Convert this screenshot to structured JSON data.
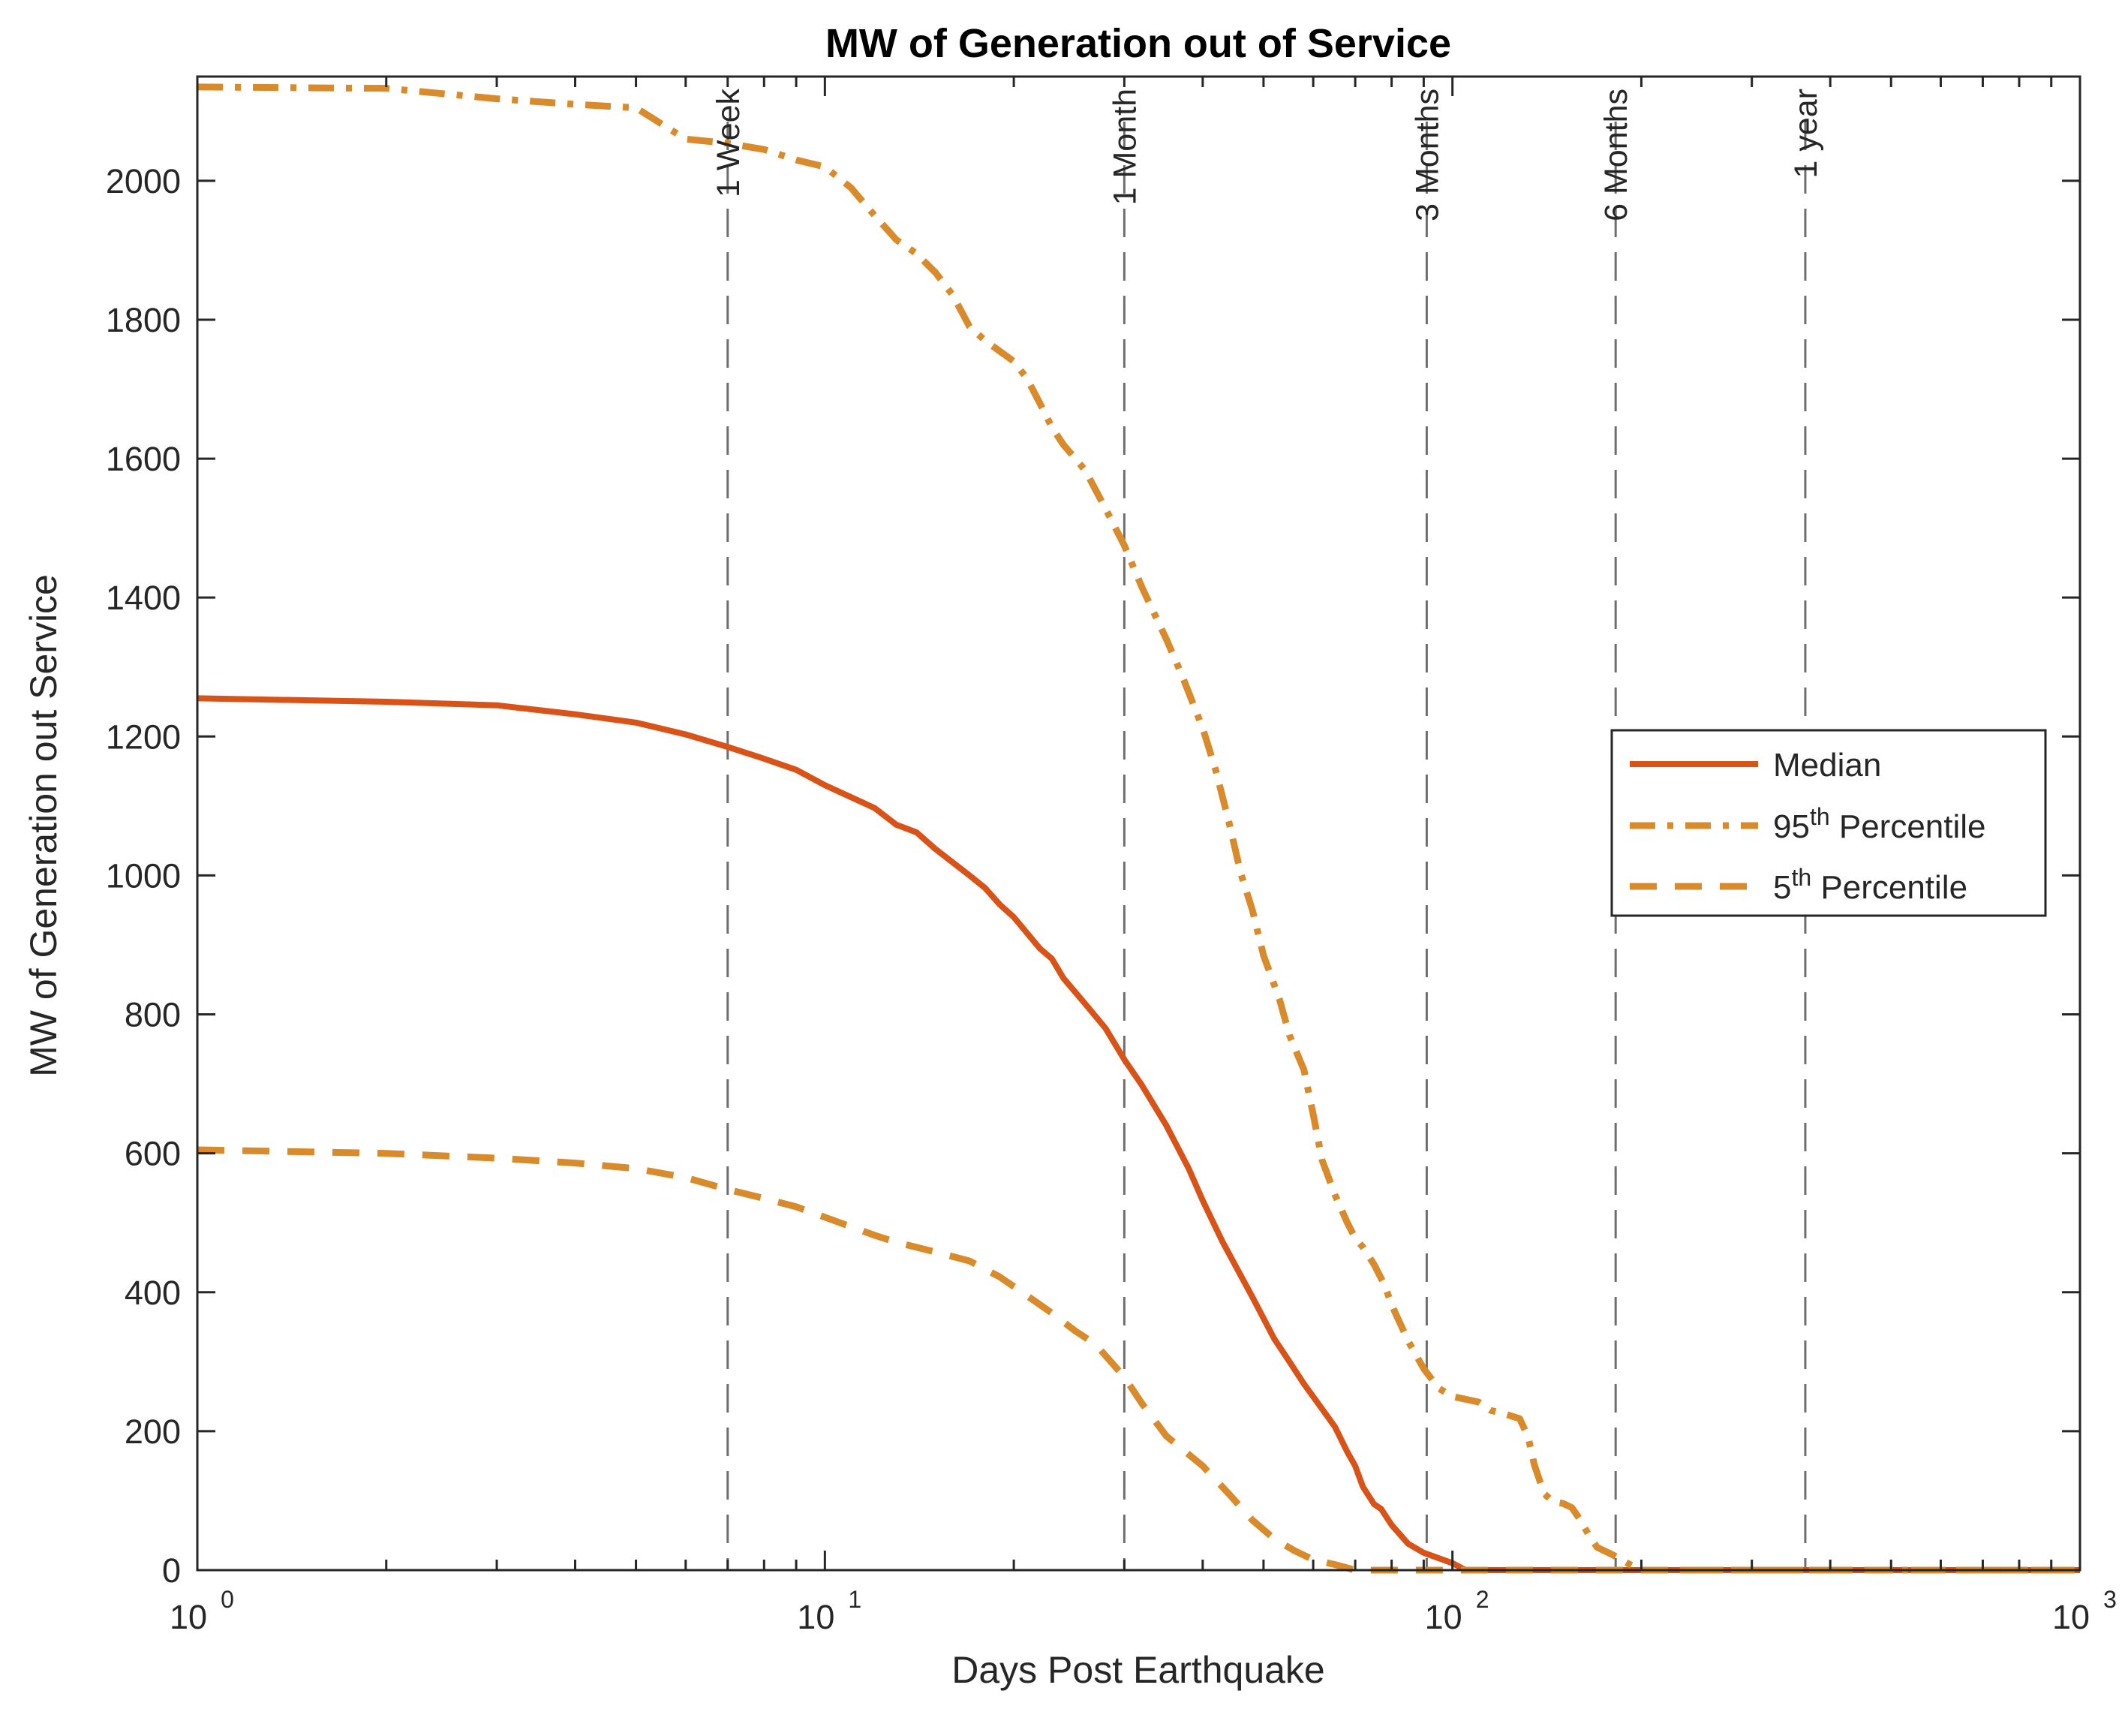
{
  "chart_data": {
    "type": "line",
    "title": "MW of Generation out of Service",
    "xlabel": "Days Post Earthquake",
    "ylabel": "MW of Generation out Service",
    "xscale": "log",
    "xlim": [
      1,
      1000
    ],
    "ylim": [
      0,
      2150
    ],
    "grid": false,
    "legend_position": "right",
    "x_ticks": [
      {
        "base": "10",
        "exp": "0",
        "value": 1
      },
      {
        "base": "10",
        "exp": "1",
        "value": 10
      },
      {
        "base": "10",
        "exp": "2",
        "value": 100
      },
      {
        "base": "10",
        "exp": "3",
        "value": 1000
      }
    ],
    "y_ticks": [
      "0",
      "200",
      "400",
      "600",
      "800",
      "1000",
      "1200",
      "1400",
      "1600",
      "1800",
      "2000"
    ],
    "annotations": [
      {
        "label": "1 Week",
        "x": 7
      },
      {
        "label": "1 Month",
        "x": 30
      },
      {
        "label": "3 Months",
        "x": 91
      },
      {
        "label": "6 Months",
        "x": 182
      },
      {
        "label": "1 year",
        "x": 365
      }
    ],
    "series": [
      {
        "name": "Median",
        "legend_label": "Median",
        "style": "solid",
        "color": "#D95319",
        "points": [
          [
            1,
            1255
          ],
          [
            2,
            1250
          ],
          [
            3,
            1245
          ],
          [
            4,
            1232
          ],
          [
            5,
            1220
          ],
          [
            6,
            1203
          ],
          [
            7,
            1185
          ],
          [
            8,
            1168
          ],
          [
            9,
            1152
          ],
          [
            10,
            1130
          ],
          [
            12,
            1097
          ],
          [
            13,
            1073
          ],
          [
            14,
            1062
          ],
          [
            15,
            1038
          ],
          [
            17,
            1000
          ],
          [
            18,
            982
          ],
          [
            19,
            958
          ],
          [
            20,
            940
          ],
          [
            22,
            895
          ],
          [
            23,
            880
          ],
          [
            24,
            852
          ],
          [
            26,
            815
          ],
          [
            28,
            780
          ],
          [
            30,
            735
          ],
          [
            32,
            698
          ],
          [
            35,
            640
          ],
          [
            38,
            578
          ],
          [
            40,
            532
          ],
          [
            43,
            473
          ],
          [
            45,
            440
          ],
          [
            48,
            393
          ],
          [
            52,
            333
          ],
          [
            55,
            300
          ],
          [
            58,
            268
          ],
          [
            62,
            232
          ],
          [
            65,
            206
          ],
          [
            68,
            170
          ],
          [
            70,
            150
          ],
          [
            72,
            120
          ],
          [
            75,
            95
          ],
          [
            77,
            88
          ],
          [
            80,
            65
          ],
          [
            85,
            38
          ],
          [
            90,
            25
          ],
          [
            100,
            10
          ],
          [
            105,
            0
          ],
          [
            1000,
            0
          ]
        ]
      },
      {
        "name": "95th Percentile",
        "legend_label": "95",
        "legend_sup": "th",
        "legend_suffix": " Percentile",
        "style": "dashdot",
        "color": "#D98A2B",
        "points": [
          [
            1,
            2135
          ],
          [
            2,
            2133
          ],
          [
            3,
            2118
          ],
          [
            4,
            2110
          ],
          [
            5,
            2105
          ],
          [
            6,
            2060
          ],
          [
            7,
            2054
          ],
          [
            8,
            2045
          ],
          [
            9,
            2030
          ],
          [
            10,
            2020
          ],
          [
            11,
            1990
          ],
          [
            12,
            1950
          ],
          [
            13,
            1915
          ],
          [
            14,
            1895
          ],
          [
            15,
            1868
          ],
          [
            16,
            1835
          ],
          [
            17,
            1790
          ],
          [
            18,
            1770
          ],
          [
            20,
            1740
          ],
          [
            21,
            1715
          ],
          [
            22,
            1680
          ],
          [
            23,
            1645
          ],
          [
            24,
            1620
          ],
          [
            26,
            1583
          ],
          [
            28,
            1528
          ],
          [
            30,
            1475
          ],
          [
            32,
            1415
          ],
          [
            35,
            1340
          ],
          [
            37,
            1290
          ],
          [
            40,
            1212
          ],
          [
            42,
            1150
          ],
          [
            44,
            1078
          ],
          [
            46,
            1003
          ],
          [
            48,
            950
          ],
          [
            50,
            885
          ],
          [
            53,
            822
          ],
          [
            55,
            770
          ],
          [
            58,
            720
          ],
          [
            60,
            656
          ],
          [
            62,
            590
          ],
          [
            65,
            540
          ],
          [
            68,
            500
          ],
          [
            70,
            478
          ],
          [
            72,
            465
          ],
          [
            75,
            440
          ],
          [
            78,
            410
          ],
          [
            80,
            382
          ],
          [
            85,
            330
          ],
          [
            90,
            290
          ],
          [
            95,
            262
          ],
          [
            100,
            250
          ],
          [
            110,
            242
          ],
          [
            115,
            230
          ],
          [
            120,
            226
          ],
          [
            128,
            218
          ],
          [
            132,
            192
          ],
          [
            135,
            152
          ],
          [
            140,
            110
          ],
          [
            145,
            98
          ],
          [
            150,
            96
          ],
          [
            155,
            90
          ],
          [
            160,
            72
          ],
          [
            165,
            50
          ],
          [
            170,
            33
          ],
          [
            180,
            22
          ],
          [
            190,
            10
          ],
          [
            200,
            0
          ],
          [
            1000,
            0
          ]
        ]
      },
      {
        "name": "5th Percentile",
        "legend_label": "5",
        "legend_sup": "th",
        "legend_suffix": " Percentile",
        "style": "dashed",
        "color": "#D98A2B",
        "points": [
          [
            1,
            605
          ],
          [
            2,
            600
          ],
          [
            3,
            593
          ],
          [
            4,
            586
          ],
          [
            5,
            578
          ],
          [
            6,
            565
          ],
          [
            7,
            548
          ],
          [
            8,
            535
          ],
          [
            9,
            523
          ],
          [
            10,
            508
          ],
          [
            12,
            482
          ],
          [
            13,
            472
          ],
          [
            15,
            458
          ],
          [
            17,
            445
          ],
          [
            19,
            422
          ],
          [
            21,
            395
          ],
          [
            23,
            370
          ],
          [
            25,
            345
          ],
          [
            27,
            325
          ],
          [
            30,
            278
          ],
          [
            32,
            240
          ],
          [
            35,
            193
          ],
          [
            40,
            150
          ],
          [
            44,
            110
          ],
          [
            48,
            72
          ],
          [
            52,
            45
          ],
          [
            56,
            28
          ],
          [
            60,
            15
          ],
          [
            65,
            8
          ],
          [
            70,
            0
          ],
          [
            1000,
            0
          ]
        ]
      }
    ]
  }
}
